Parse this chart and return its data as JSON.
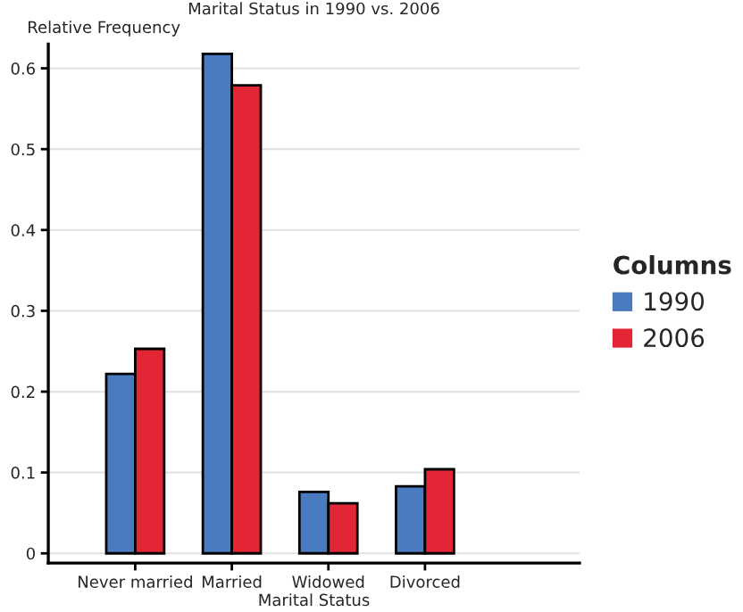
{
  "chart_data": {
    "type": "bar",
    "title": "Marital Status in 1990 vs. 2006",
    "xlabel": "Marital Status",
    "ylabel": "Relative Frequency",
    "legend_title": "Columns",
    "categories": [
      "Never married",
      "Married",
      "Widowed",
      "Divorced"
    ],
    "series": [
      {
        "name": "1990",
        "color": "#4a7abf",
        "values": [
          0.222,
          0.618,
          0.076,
          0.083
        ]
      },
      {
        "name": "2006",
        "color": "#e32636",
        "values": [
          0.253,
          0.579,
          0.062,
          0.104
        ]
      }
    ],
    "ylim": [
      -0.012,
      0.63
    ],
    "yticks": [
      0,
      0.1,
      0.2,
      0.3,
      0.4,
      0.5,
      0.6
    ],
    "grid": "y",
    "legend": "right"
  }
}
